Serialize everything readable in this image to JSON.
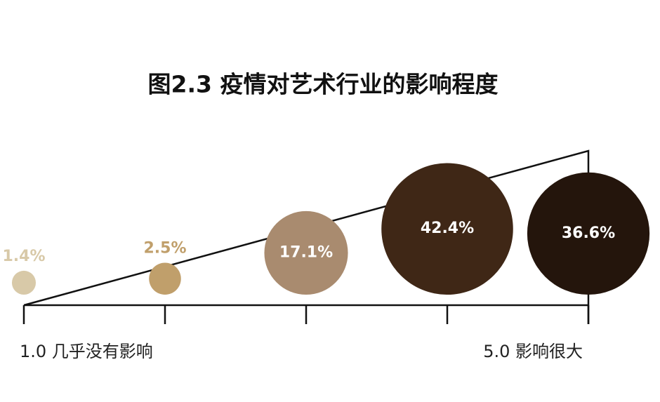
{
  "chart_data": {
    "type": "bubble",
    "title": "图2.3  疫情对艺术行业的影响程度",
    "x": [
      1,
      2,
      3,
      4,
      5
    ],
    "xlim": [
      1,
      5
    ],
    "xticks": [
      {
        "value": 1,
        "label": "1.0  几乎没有影响"
      },
      {
        "value": 2
      },
      {
        "value": 3
      },
      {
        "value": 4
      },
      {
        "value": 5,
        "label": "5.0  影响很大"
      }
    ],
    "series": [
      {
        "values": [
          1.4,
          2.5,
          17.1,
          42.4,
          36.6
        ],
        "value_labels": [
          "1.4%",
          "2.5%",
          "17.1%",
          "42.4%",
          "36.6%"
        ],
        "colors": [
          "#d8c9a8",
          "#c09f6b",
          "#a98b6f",
          "#3f2716",
          "#24150c"
        ]
      }
    ]
  }
}
